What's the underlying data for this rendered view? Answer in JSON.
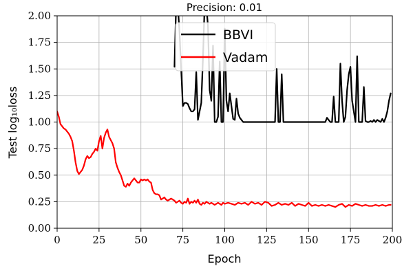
{
  "chart_data": {
    "type": "line",
    "title": "Precision: 0.01",
    "xlabel": "Epoch",
    "ylabel": "Test log₁₀loss",
    "xlim": [
      0,
      200
    ],
    "ylim": [
      0,
      2
    ],
    "xticks": [
      0,
      25,
      50,
      75,
      100,
      125,
      150,
      175,
      200
    ],
    "yticks": [
      0.0,
      0.25,
      0.5,
      0.75,
      1.0,
      1.25,
      1.5,
      1.75,
      2.0
    ],
    "xtick_labels": [
      "0",
      "25",
      "50",
      "75",
      "100",
      "125",
      "150",
      "175",
      "200"
    ],
    "ytick_labels": [
      "0.00",
      "0.25",
      "0.50",
      "0.75",
      "1.00",
      "1.25",
      "1.50",
      "1.75",
      "2.00"
    ],
    "grid": true,
    "legend_position": "top-center",
    "series": [
      {
        "name": "BBVI",
        "color": "#000000",
        "points": [
          [
            70,
            1.52
          ],
          [
            71,
            2.1
          ],
          [
            72,
            2.1
          ],
          [
            73,
            1.85
          ],
          [
            74,
            1.5
          ],
          [
            75,
            1.15
          ],
          [
            76,
            1.18
          ],
          [
            77,
            1.18
          ],
          [
            78,
            1.17
          ],
          [
            79,
            1.13
          ],
          [
            80,
            1.1
          ],
          [
            81,
            1.1
          ],
          [
            82,
            1.12
          ],
          [
            83,
            1.47
          ],
          [
            84,
            1.02
          ],
          [
            85,
            1.1
          ],
          [
            86,
            1.18
          ],
          [
            87,
            1.6
          ],
          [
            88,
            2.1
          ],
          [
            89,
            2.1
          ],
          [
            90,
            1.9
          ],
          [
            91,
            1.3
          ],
          [
            92,
            1.2
          ],
          [
            93,
            1.72
          ],
          [
            94,
            1.0
          ],
          [
            95,
            1.0
          ],
          [
            96,
            1.05
          ],
          [
            97,
            1.57
          ],
          [
            98,
            1.0
          ],
          [
            99,
            1.0
          ],
          [
            100,
            1.88
          ],
          [
            101,
            1.2
          ],
          [
            102,
            1.1
          ],
          [
            103,
            1.27
          ],
          [
            104,
            1.15
          ],
          [
            105,
            1.03
          ],
          [
            106,
            1.02
          ],
          [
            107,
            1.22
          ],
          [
            108,
            1.08
          ],
          [
            109,
            1.04
          ],
          [
            110,
            1.02
          ],
          [
            111,
            1.0
          ],
          [
            112,
            1.0
          ],
          [
            113,
            1.0
          ],
          [
            114,
            1.0
          ],
          [
            115,
            1.0
          ],
          [
            116,
            1.0
          ],
          [
            117,
            1.0
          ],
          [
            118,
            1.0
          ],
          [
            119,
            1.0
          ],
          [
            120,
            1.0
          ],
          [
            121,
            1.0
          ],
          [
            122,
            1.0
          ],
          [
            123,
            1.0
          ],
          [
            124,
            1.0
          ],
          [
            125,
            1.0
          ],
          [
            126,
            1.0
          ],
          [
            127,
            1.0
          ],
          [
            128,
            1.0
          ],
          [
            129,
            1.0
          ],
          [
            130,
            1.0
          ],
          [
            131,
            1.5
          ],
          [
            132,
            1.0
          ],
          [
            133,
            1.0
          ],
          [
            134,
            1.45
          ],
          [
            135,
            1.0
          ],
          [
            136,
            1.0
          ],
          [
            137,
            1.0
          ],
          [
            138,
            1.0
          ],
          [
            140,
            1.0
          ],
          [
            145,
            1.0
          ],
          [
            150,
            1.0
          ],
          [
            155,
            1.0
          ],
          [
            160,
            1.0
          ],
          [
            161,
            1.04
          ],
          [
            162,
            1.02
          ],
          [
            163,
            1.0
          ],
          [
            164,
            1.0
          ],
          [
            165,
            1.24
          ],
          [
            166,
            1.0
          ],
          [
            167,
            1.0
          ],
          [
            168,
            1.0
          ],
          [
            169,
            1.55
          ],
          [
            170,
            1.2
          ],
          [
            171,
            1.0
          ],
          [
            172,
            1.05
          ],
          [
            173,
            1.3
          ],
          [
            174,
            1.45
          ],
          [
            175,
            1.52
          ],
          [
            176,
            1.2
          ],
          [
            177,
            1.1
          ],
          [
            178,
            1.0
          ],
          [
            179,
            1.62
          ],
          [
            180,
            1.0
          ],
          [
            181,
            1.0
          ],
          [
            182,
            1.0
          ],
          [
            183,
            1.33
          ],
          [
            184,
            1.01
          ],
          [
            185,
            1.0
          ],
          [
            186,
            1.0
          ],
          [
            187,
            1.01
          ],
          [
            188,
            1.0
          ],
          [
            189,
            1.02
          ],
          [
            190,
            1.0
          ],
          [
            191,
            1.02
          ],
          [
            192,
            1.01
          ],
          [
            193,
            1.0
          ],
          [
            194,
            1.03
          ],
          [
            195,
            1.0
          ],
          [
            196,
            1.04
          ],
          [
            197,
            1.1
          ],
          [
            198,
            1.2
          ],
          [
            199,
            1.27
          ]
        ]
      },
      {
        "name": "Vadam",
        "color": "#ff0000",
        "points": [
          [
            0,
            1.1
          ],
          [
            1,
            1.05
          ],
          [
            2,
            0.98
          ],
          [
            3,
            0.96
          ],
          [
            4,
            0.94
          ],
          [
            5,
            0.93
          ],
          [
            6,
            0.91
          ],
          [
            7,
            0.89
          ],
          [
            8,
            0.86
          ],
          [
            9,
            0.82
          ],
          [
            10,
            0.73
          ],
          [
            11,
            0.62
          ],
          [
            12,
            0.54
          ],
          [
            13,
            0.51
          ],
          [
            14,
            0.53
          ],
          [
            15,
            0.55
          ],
          [
            16,
            0.59
          ],
          [
            17,
            0.65
          ],
          [
            18,
            0.68
          ],
          [
            19,
            0.66
          ],
          [
            20,
            0.67
          ],
          [
            21,
            0.7
          ],
          [
            22,
            0.72
          ],
          [
            23,
            0.75
          ],
          [
            24,
            0.73
          ],
          [
            25,
            0.82
          ],
          [
            26,
            0.87
          ],
          [
            27,
            0.75
          ],
          [
            28,
            0.85
          ],
          [
            29,
            0.9
          ],
          [
            30,
            0.93
          ],
          [
            31,
            0.86
          ],
          [
            32,
            0.83
          ],
          [
            33,
            0.8
          ],
          [
            34,
            0.75
          ],
          [
            35,
            0.62
          ],
          [
            36,
            0.57
          ],
          [
            37,
            0.53
          ],
          [
            38,
            0.5
          ],
          [
            39,
            0.45
          ],
          [
            40,
            0.4
          ],
          [
            41,
            0.39
          ],
          [
            42,
            0.42
          ],
          [
            43,
            0.4
          ],
          [
            44,
            0.43
          ],
          [
            45,
            0.45
          ],
          [
            46,
            0.47
          ],
          [
            47,
            0.45
          ],
          [
            48,
            0.43
          ],
          [
            49,
            0.43
          ],
          [
            50,
            0.46
          ],
          [
            51,
            0.45
          ],
          [
            52,
            0.46
          ],
          [
            53,
            0.45
          ],
          [
            54,
            0.46
          ],
          [
            55,
            0.44
          ],
          [
            56,
            0.43
          ],
          [
            57,
            0.36
          ],
          [
            58,
            0.33
          ],
          [
            59,
            0.32
          ],
          [
            60,
            0.32
          ],
          [
            61,
            0.31
          ],
          [
            62,
            0.27
          ],
          [
            63,
            0.28
          ],
          [
            64,
            0.29
          ],
          [
            65,
            0.27
          ],
          [
            66,
            0.26
          ],
          [
            67,
            0.27
          ],
          [
            68,
            0.28
          ],
          [
            69,
            0.27
          ],
          [
            70,
            0.26
          ],
          [
            71,
            0.24
          ],
          [
            72,
            0.25
          ],
          [
            73,
            0.26
          ],
          [
            74,
            0.24
          ],
          [
            75,
            0.23
          ],
          [
            76,
            0.25
          ],
          [
            77,
            0.24
          ],
          [
            78,
            0.28
          ],
          [
            79,
            0.23
          ],
          [
            80,
            0.25
          ],
          [
            81,
            0.24
          ],
          [
            82,
            0.26
          ],
          [
            83,
            0.24
          ],
          [
            84,
            0.27
          ],
          [
            85,
            0.23
          ],
          [
            86,
            0.22
          ],
          [
            87,
            0.24
          ],
          [
            88,
            0.23
          ],
          [
            89,
            0.25
          ],
          [
            90,
            0.24
          ],
          [
            91,
            0.23
          ],
          [
            92,
            0.24
          ],
          [
            93,
            0.23
          ],
          [
            94,
            0.22
          ],
          [
            95,
            0.23
          ],
          [
            96,
            0.24
          ],
          [
            97,
            0.23
          ],
          [
            98,
            0.22
          ],
          [
            99,
            0.24
          ],
          [
            100,
            0.23
          ],
          [
            102,
            0.24
          ],
          [
            104,
            0.23
          ],
          [
            106,
            0.22
          ],
          [
            108,
            0.24
          ],
          [
            110,
            0.23
          ],
          [
            112,
            0.24
          ],
          [
            114,
            0.22
          ],
          [
            116,
            0.25
          ],
          [
            118,
            0.23
          ],
          [
            120,
            0.24
          ],
          [
            122,
            0.22
          ],
          [
            124,
            0.25
          ],
          [
            126,
            0.24
          ],
          [
            128,
            0.21
          ],
          [
            130,
            0.22
          ],
          [
            132,
            0.24
          ],
          [
            134,
            0.22
          ],
          [
            136,
            0.23
          ],
          [
            138,
            0.22
          ],
          [
            140,
            0.24
          ],
          [
            142,
            0.21
          ],
          [
            144,
            0.23
          ],
          [
            146,
            0.22
          ],
          [
            148,
            0.21
          ],
          [
            150,
            0.24
          ],
          [
            152,
            0.21
          ],
          [
            154,
            0.22
          ],
          [
            156,
            0.21
          ],
          [
            158,
            0.22
          ],
          [
            160,
            0.21
          ],
          [
            162,
            0.22
          ],
          [
            164,
            0.21
          ],
          [
            166,
            0.2
          ],
          [
            168,
            0.22
          ],
          [
            170,
            0.23
          ],
          [
            172,
            0.2
          ],
          [
            174,
            0.22
          ],
          [
            176,
            0.21
          ],
          [
            178,
            0.23
          ],
          [
            180,
            0.22
          ],
          [
            182,
            0.21
          ],
          [
            184,
            0.22
          ],
          [
            186,
            0.21
          ],
          [
            188,
            0.21
          ],
          [
            190,
            0.22
          ],
          [
            192,
            0.21
          ],
          [
            194,
            0.22
          ],
          [
            196,
            0.21
          ],
          [
            198,
            0.22
          ],
          [
            199,
            0.22
          ]
        ]
      }
    ]
  }
}
